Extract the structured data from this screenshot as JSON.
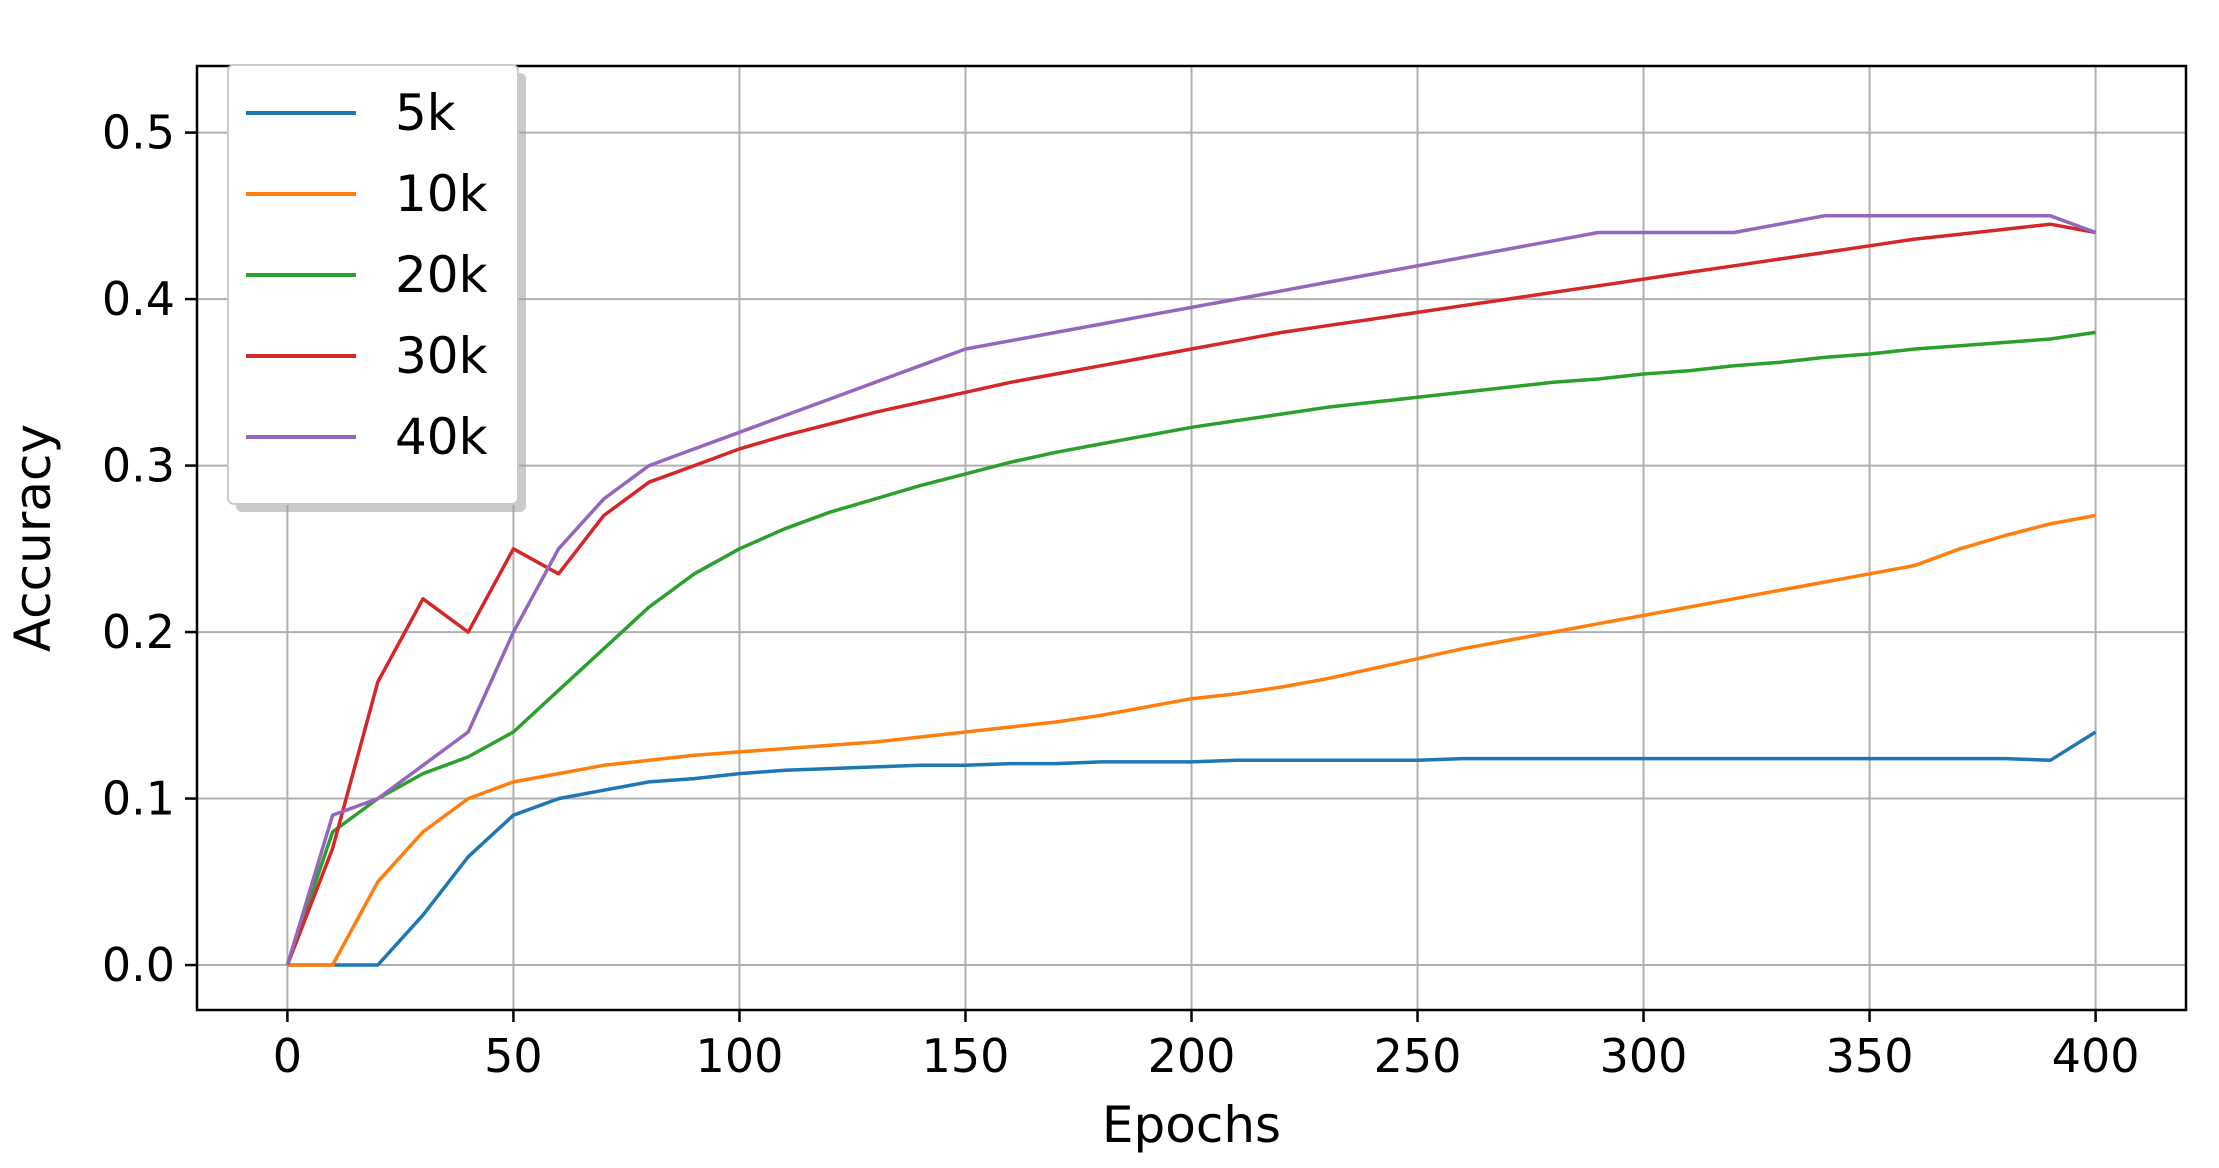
{
  "chart_data": {
    "type": "line",
    "xlabel": "Epochs",
    "ylabel": "Accuracy",
    "xlim": [
      -20,
      420
    ],
    "ylim": [
      -0.027,
      0.54
    ],
    "xticks": [
      0,
      50,
      100,
      150,
      200,
      250,
      300,
      350,
      400
    ],
    "yticks": [
      0.0,
      0.1,
      0.2,
      0.3,
      0.4,
      0.5
    ],
    "xtick_labels": [
      "0",
      "50",
      "100",
      "150",
      "200",
      "250",
      "300",
      "350",
      "400"
    ],
    "ytick_labels": [
      "0.0",
      "0.1",
      "0.2",
      "0.3",
      "0.4",
      "0.5"
    ],
    "grid": true,
    "legend_position": "top-left",
    "x": [
      0,
      10,
      20,
      30,
      40,
      50,
      60,
      70,
      80,
      90,
      100,
      110,
      120,
      130,
      140,
      150,
      160,
      170,
      180,
      190,
      200,
      210,
      220,
      230,
      240,
      250,
      260,
      270,
      280,
      290,
      300,
      310,
      320,
      330,
      340,
      350,
      360,
      370,
      380,
      390,
      400
    ],
    "series": [
      {
        "name": "5k",
        "color": "#1f77b4",
        "values": [
          0.0,
          0.0,
          0.0,
          0.03,
          0.065,
          0.09,
          0.1,
          0.105,
          0.11,
          0.112,
          0.115,
          0.117,
          0.118,
          0.119,
          0.12,
          0.12,
          0.121,
          0.121,
          0.122,
          0.122,
          0.122,
          0.123,
          0.123,
          0.123,
          0.123,
          0.123,
          0.124,
          0.124,
          0.124,
          0.124,
          0.124,
          0.124,
          0.124,
          0.124,
          0.124,
          0.124,
          0.124,
          0.124,
          0.124,
          0.123,
          0.14
        ]
      },
      {
        "name": "10k",
        "color": "#ff7f0e",
        "values": [
          0.0,
          0.0,
          0.05,
          0.08,
          0.1,
          0.11,
          0.115,
          0.12,
          0.123,
          0.126,
          0.128,
          0.13,
          0.132,
          0.134,
          0.137,
          0.14,
          0.143,
          0.146,
          0.15,
          0.155,
          0.16,
          0.163,
          0.167,
          0.172,
          0.178,
          0.184,
          0.19,
          0.195,
          0.2,
          0.205,
          0.21,
          0.215,
          0.22,
          0.225,
          0.23,
          0.235,
          0.24,
          0.25,
          0.258,
          0.265,
          0.27
        ]
      },
      {
        "name": "20k",
        "color": "#2ca02c",
        "values": [
          0.0,
          0.08,
          0.1,
          0.115,
          0.125,
          0.14,
          0.165,
          0.19,
          0.215,
          0.235,
          0.25,
          0.262,
          0.272,
          0.28,
          0.288,
          0.295,
          0.302,
          0.308,
          0.313,
          0.318,
          0.323,
          0.327,
          0.331,
          0.335,
          0.338,
          0.341,
          0.344,
          0.347,
          0.35,
          0.352,
          0.355,
          0.357,
          0.36,
          0.362,
          0.365,
          0.367,
          0.37,
          0.372,
          0.374,
          0.376,
          0.38
        ]
      },
      {
        "name": "30k",
        "color": "#d62728",
        "values": [
          0.0,
          0.07,
          0.17,
          0.22,
          0.2,
          0.25,
          0.235,
          0.27,
          0.29,
          0.3,
          0.31,
          0.318,
          0.325,
          0.332,
          0.338,
          0.344,
          0.35,
          0.355,
          0.36,
          0.365,
          0.37,
          0.375,
          0.38,
          0.384,
          0.388,
          0.392,
          0.396,
          0.4,
          0.404,
          0.408,
          0.412,
          0.416,
          0.42,
          0.424,
          0.428,
          0.432,
          0.436,
          0.439,
          0.442,
          0.445,
          0.44
        ]
      },
      {
        "name": "40k",
        "color": "#9467bd",
        "values": [
          0.0,
          0.09,
          0.1,
          0.12,
          0.14,
          0.2,
          0.25,
          0.28,
          0.3,
          0.31,
          0.32,
          0.33,
          0.34,
          0.35,
          0.36,
          0.37,
          0.375,
          0.38,
          0.385,
          0.39,
          0.395,
          0.4,
          0.405,
          0.41,
          0.415,
          0.42,
          0.425,
          0.43,
          0.435,
          0.44,
          0.44,
          0.44,
          0.44,
          0.445,
          0.45,
          0.45,
          0.45,
          0.45,
          0.45,
          0.45,
          0.44
        ]
      }
    ]
  }
}
